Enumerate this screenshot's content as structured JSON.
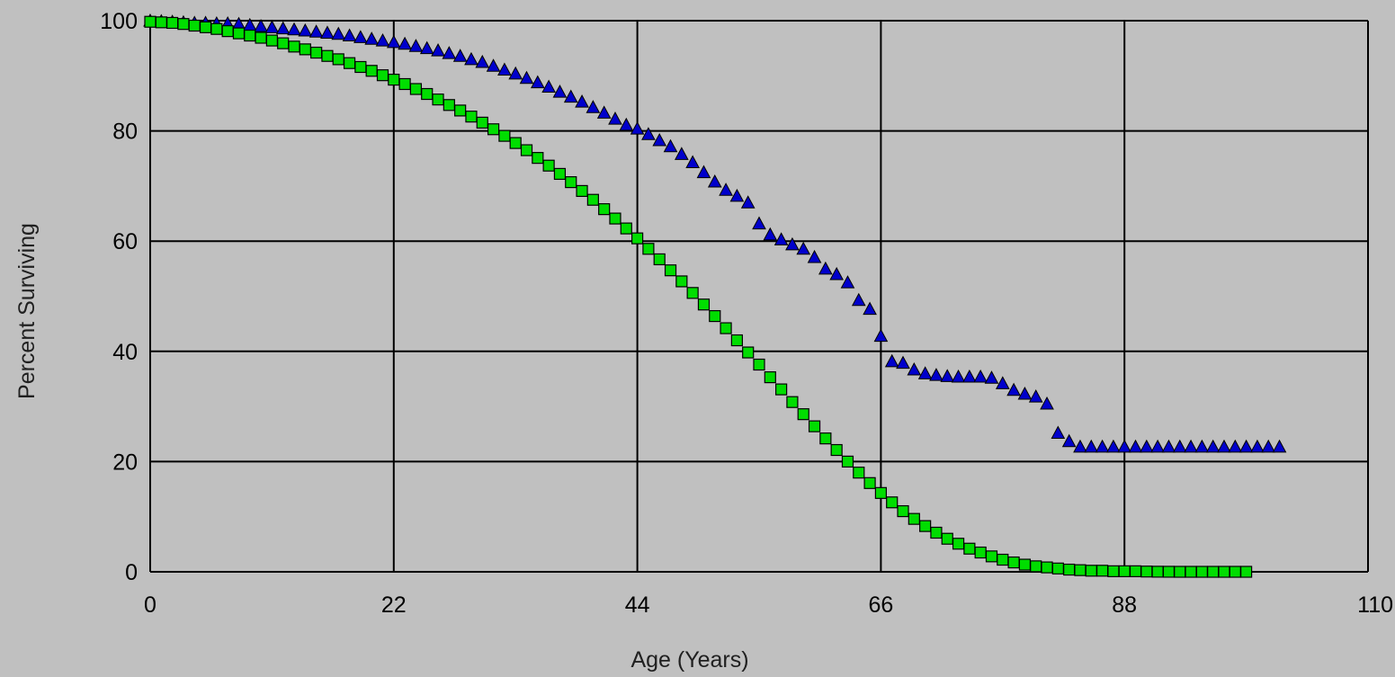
{
  "chart_data": {
    "type": "scatter",
    "xlabel": "Age (Years)",
    "ylabel": "Percent Surviving",
    "xlim": [
      0,
      110
    ],
    "ylim": [
      0,
      100
    ],
    "x_ticks": [
      "0",
      "22",
      "44",
      "66",
      "88",
      "110"
    ],
    "y_ticks": [
      "0",
      "20",
      "40",
      "60",
      "80",
      "100"
    ],
    "grid": true,
    "legend": "none",
    "background_color": "#c0c0c0",
    "grid_color": "#000000",
    "series": [
      {
        "marker": "triangle",
        "color": "#0000cc",
        "points": [
          [
            0,
            100
          ],
          [
            1,
            99.9
          ],
          [
            2,
            99.8
          ],
          [
            3,
            99.7
          ],
          [
            4,
            99.6
          ],
          [
            5,
            99.6
          ],
          [
            6,
            99.5
          ],
          [
            7,
            99.5
          ],
          [
            8,
            99.4
          ],
          [
            9,
            99.2
          ],
          [
            10,
            99
          ],
          [
            11,
            98.8
          ],
          [
            12,
            98.6
          ],
          [
            13,
            98.4
          ],
          [
            14,
            98.2
          ],
          [
            15,
            98
          ],
          [
            16,
            97.8
          ],
          [
            17,
            97.6
          ],
          [
            18,
            97.3
          ],
          [
            19,
            97
          ],
          [
            20,
            96.7
          ],
          [
            21,
            96.4
          ],
          [
            22,
            96.1
          ],
          [
            23,
            95.8
          ],
          [
            24,
            95.4
          ],
          [
            25,
            95
          ],
          [
            26,
            94.6
          ],
          [
            27,
            94.1
          ],
          [
            28,
            93.6
          ],
          [
            29,
            93
          ],
          [
            30,
            92.5
          ],
          [
            31,
            91.8
          ],
          [
            32,
            91.1
          ],
          [
            33,
            90.4
          ],
          [
            34,
            89.6
          ],
          [
            35,
            88.8
          ],
          [
            36,
            88
          ],
          [
            37,
            87.1
          ],
          [
            38,
            86.2
          ],
          [
            39,
            85.3
          ],
          [
            40,
            84.3
          ],
          [
            41,
            83.3
          ],
          [
            42,
            82.2
          ],
          [
            43,
            81.1
          ],
          [
            44,
            80.4
          ],
          [
            45,
            79.4
          ],
          [
            46,
            78.3
          ],
          [
            47,
            77.2
          ],
          [
            48,
            75.8
          ],
          [
            49,
            74.3
          ],
          [
            50,
            72.5
          ],
          [
            51,
            70.8
          ],
          [
            52,
            69.3
          ],
          [
            53,
            68.2
          ],
          [
            54,
            67
          ],
          [
            55,
            63.2
          ],
          [
            56,
            61.2
          ],
          [
            57,
            60.3
          ],
          [
            58,
            59.4
          ],
          [
            59,
            58.6
          ],
          [
            60,
            57.1
          ],
          [
            61,
            55
          ],
          [
            62,
            54
          ],
          [
            63,
            52.5
          ],
          [
            64,
            49.3
          ],
          [
            65,
            47.7
          ],
          [
            66,
            42.8
          ],
          [
            67,
            38.2
          ],
          [
            68,
            37.9
          ],
          [
            69,
            36.7
          ],
          [
            70,
            36
          ],
          [
            71,
            35.7
          ],
          [
            72,
            35.5
          ],
          [
            73,
            35.4
          ],
          [
            74,
            35.4
          ],
          [
            75,
            35.4
          ],
          [
            76,
            35.2
          ],
          [
            77,
            34.2
          ],
          [
            78,
            33
          ],
          [
            79,
            32.3
          ],
          [
            80,
            31.8
          ],
          [
            81,
            30.5
          ],
          [
            82,
            25.2
          ],
          [
            83,
            23.7
          ],
          [
            84,
            22.7
          ],
          [
            85,
            22.7
          ],
          [
            86,
            22.7
          ],
          [
            87,
            22.7
          ],
          [
            88,
            22.7
          ],
          [
            89,
            22.7
          ],
          [
            90,
            22.7
          ],
          [
            91,
            22.7
          ],
          [
            92,
            22.7
          ],
          [
            93,
            22.7
          ],
          [
            94,
            22.7
          ],
          [
            95,
            22.7
          ],
          [
            96,
            22.7
          ],
          [
            97,
            22.7
          ],
          [
            98,
            22.7
          ],
          [
            99,
            22.7
          ],
          [
            100,
            22.7
          ],
          [
            101,
            22.7
          ],
          [
            102,
            22.7
          ]
        ]
      },
      {
        "marker": "square",
        "color": "#00dd00",
        "points": [
          [
            0,
            99.8
          ],
          [
            1,
            99.7
          ],
          [
            2,
            99.6
          ],
          [
            3,
            99.4
          ],
          [
            4,
            99.1
          ],
          [
            5,
            98.8
          ],
          [
            6,
            98.5
          ],
          [
            7,
            98.1
          ],
          [
            8,
            97.7
          ],
          [
            9,
            97.3
          ],
          [
            10,
            96.9
          ],
          [
            11,
            96.4
          ],
          [
            12,
            95.9
          ],
          [
            13,
            95.3
          ],
          [
            14,
            94.8
          ],
          [
            15,
            94.2
          ],
          [
            16,
            93.6
          ],
          [
            17,
            93
          ],
          [
            18,
            92.3
          ],
          [
            19,
            91.6
          ],
          [
            20,
            90.9
          ],
          [
            21,
            90.1
          ],
          [
            22,
            89.3
          ],
          [
            23,
            88.5
          ],
          [
            24,
            87.6
          ],
          [
            25,
            86.7
          ],
          [
            26,
            85.7
          ],
          [
            27,
            84.7
          ],
          [
            28,
            83.7
          ],
          [
            29,
            82.6
          ],
          [
            30,
            81.5
          ],
          [
            31,
            80.3
          ],
          [
            32,
            79.1
          ],
          [
            33,
            77.8
          ],
          [
            34,
            76.5
          ],
          [
            35,
            75.1
          ],
          [
            36,
            73.7
          ],
          [
            37,
            72.2
          ],
          [
            38,
            70.7
          ],
          [
            39,
            69.1
          ],
          [
            40,
            67.5
          ],
          [
            41,
            65.8
          ],
          [
            42,
            64.1
          ],
          [
            43,
            62.3
          ],
          [
            44,
            60.5
          ],
          [
            45,
            58.6
          ],
          [
            46,
            56.7
          ],
          [
            47,
            54.7
          ],
          [
            48,
            52.7
          ],
          [
            49,
            50.6
          ],
          [
            50,
            48.5
          ],
          [
            51,
            46.4
          ],
          [
            52,
            44.2
          ],
          [
            53,
            42
          ],
          [
            54,
            39.8
          ],
          [
            55,
            37.6
          ],
          [
            56,
            35.3
          ],
          [
            57,
            33.1
          ],
          [
            58,
            30.8
          ],
          [
            59,
            28.6
          ],
          [
            60,
            26.4
          ],
          [
            61,
            24.2
          ],
          [
            62,
            22.1
          ],
          [
            63,
            20
          ],
          [
            64,
            18
          ],
          [
            65,
            16.1
          ],
          [
            66,
            14.3
          ],
          [
            67,
            12.6
          ],
          [
            68,
            11
          ],
          [
            69,
            9.6
          ],
          [
            70,
            8.3
          ],
          [
            71,
            7.1
          ],
          [
            72,
            6
          ],
          [
            73,
            5.1
          ],
          [
            74,
            4.2
          ],
          [
            75,
            3.5
          ],
          [
            76,
            2.8
          ],
          [
            77,
            2.2
          ],
          [
            78,
            1.7
          ],
          [
            79,
            1.3
          ],
          [
            80,
            1
          ],
          [
            81,
            0.8
          ],
          [
            82,
            0.6
          ],
          [
            83,
            0.4
          ],
          [
            84,
            0.3
          ],
          [
            85,
            0.2
          ],
          [
            86,
            0.2
          ],
          [
            87,
            0.1
          ],
          [
            88,
            0.1
          ],
          [
            89,
            0.1
          ],
          [
            90,
            0.05
          ],
          [
            91,
            0.02
          ],
          [
            92,
            0.01
          ],
          [
            93,
            0
          ],
          [
            94,
            0
          ],
          [
            95,
            0
          ],
          [
            96,
            0
          ],
          [
            97,
            0
          ],
          [
            98,
            0
          ],
          [
            99,
            0
          ]
        ]
      }
    ]
  }
}
